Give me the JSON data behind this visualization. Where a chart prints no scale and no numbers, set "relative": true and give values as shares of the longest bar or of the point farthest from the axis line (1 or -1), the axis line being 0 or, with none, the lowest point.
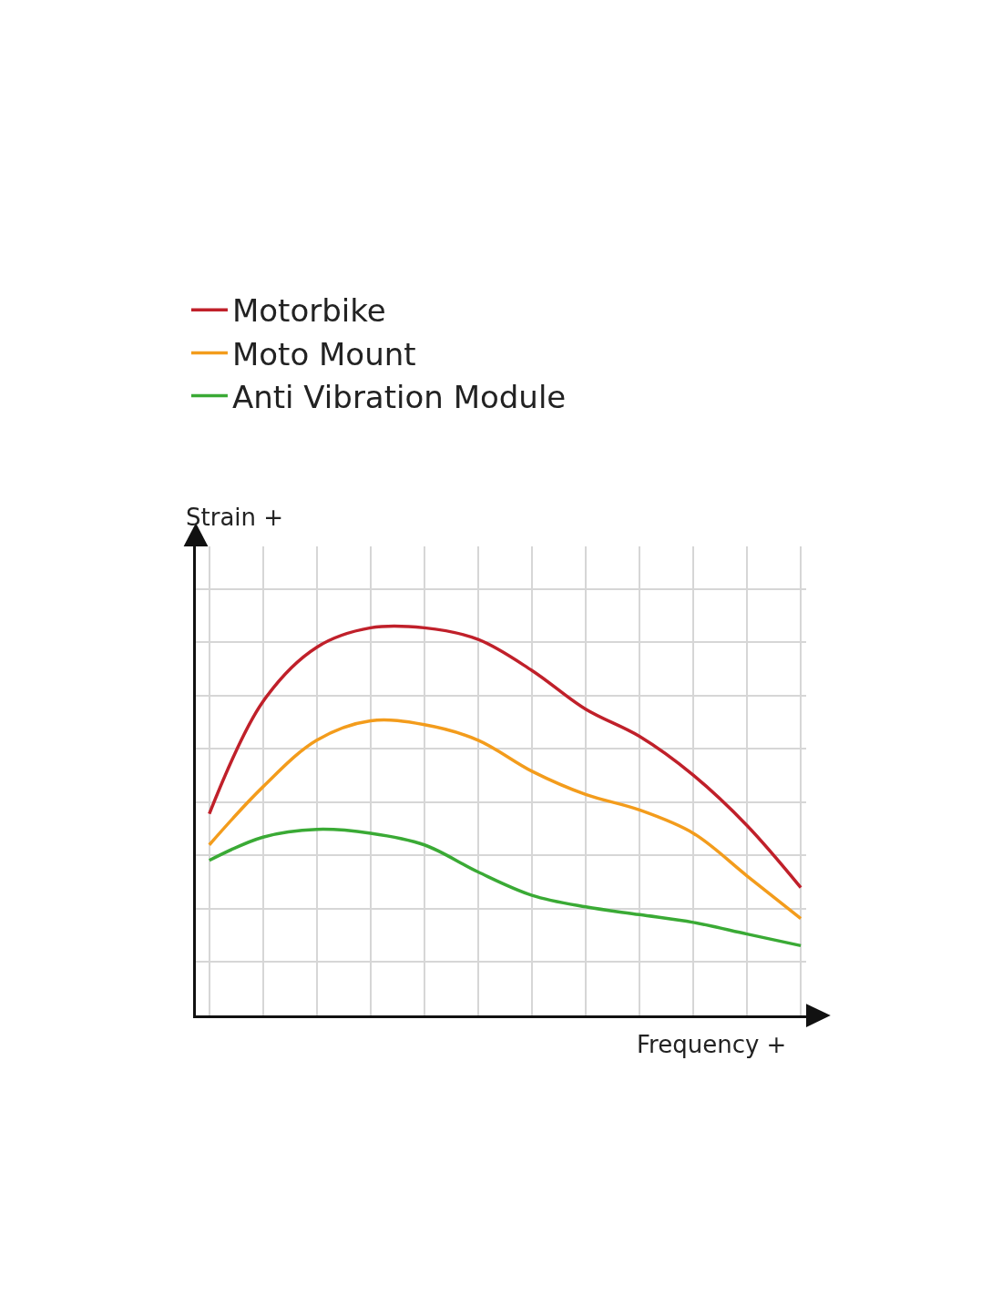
{
  "chart_data": {
    "type": "line",
    "relative": true,
    "xlabel": "Frequency +",
    "ylabel": "Strain +",
    "categories": [
      null,
      null,
      null,
      null,
      null,
      null,
      null,
      null,
      null,
      null,
      null,
      null
    ],
    "grid": true,
    "legend": "top left",
    "marker": "none",
    "line_style": "solid",
    "series": [
      {
        "name": "Motorbike",
        "color": "#c0202a",
        "values": [
          0.52,
          0.81,
          0.95,
          1.0,
          1.0,
          0.97,
          0.89,
          0.79,
          0.72,
          0.62,
          0.49,
          0.33
        ]
      },
      {
        "name": "Moto Mount",
        "color": "#f39c1c",
        "values": [
          0.44,
          0.59,
          0.71,
          0.76,
          0.75,
          0.71,
          0.63,
          0.57,
          0.53,
          0.47,
          0.36,
          0.25
        ]
      },
      {
        "name": "Anti Vibration Module",
        "color": "#3aaa35",
        "values": [
          0.4,
          0.46,
          0.48,
          0.47,
          0.44,
          0.37,
          0.31,
          0.28,
          0.26,
          0.24,
          0.21,
          0.18
        ]
      }
    ]
  }
}
